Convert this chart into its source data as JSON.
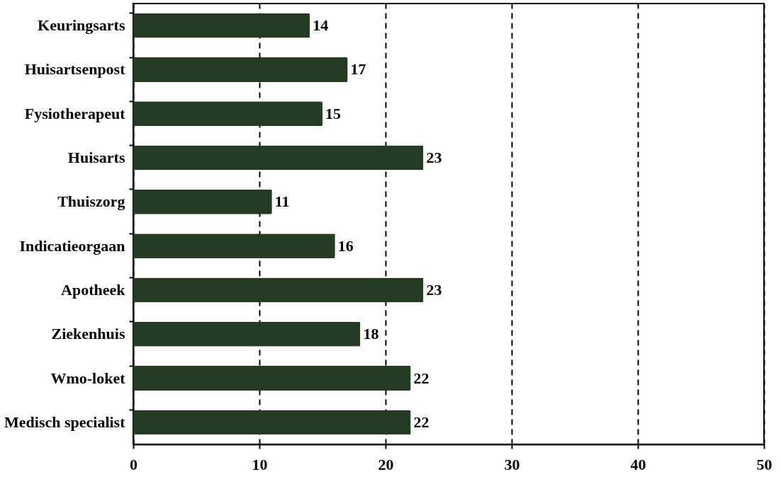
{
  "chart_data": {
    "type": "bar",
    "orientation": "horizontal",
    "categories": [
      "Keuringsarts",
      "Huisartsenpost",
      "Fysiotherapeut",
      "Huisarts",
      "Thuiszorg",
      "Indicatieorgaan",
      "Apotheek",
      "Ziekenhuis",
      "Wmo-loket",
      "Medisch specialist"
    ],
    "values": [
      14,
      17,
      15,
      23,
      11,
      16,
      23,
      18,
      22,
      22
    ],
    "color": "#253a22",
    "xlim": [
      0,
      50
    ],
    "xticks": [
      0,
      10,
      20,
      30,
      40,
      50
    ],
    "grid": "x",
    "line_style": "dashed",
    "data_labels": true
  }
}
